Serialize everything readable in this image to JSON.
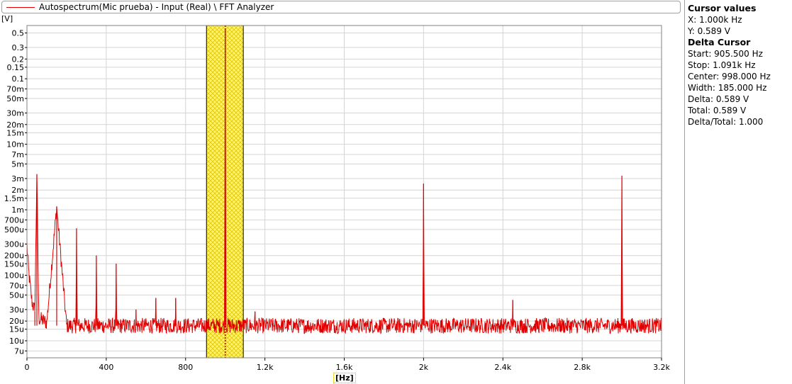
{
  "legend": {
    "label": "Autospectrum(Mic prueba) - Input (Real) \\ FFT Analyzer",
    "color": "#e00000"
  },
  "axes": {
    "y_unit": "[V]",
    "x_unit": "[Hz]"
  },
  "cursor_panel": {
    "cursor_title": "Cursor values",
    "cursor_x": "X: 1.000k Hz",
    "cursor_y": "Y: 0.589 V",
    "delta_title": "Delta Cursor",
    "start": "Start: 905.500 Hz",
    "stop": "Stop: 1.091k Hz",
    "center": "Center: 998.000 Hz",
    "width": "Width: 185.000 Hz",
    "delta": "Delta: 0.589 V",
    "total": "Total: 0.589 V",
    "delta_total": "Delta/Total: 1.000"
  },
  "chart_data": {
    "type": "line",
    "y_scale": "log",
    "xlim": [
      0,
      3200
    ],
    "ylim": [
      5.5e-06,
      0.65
    ],
    "grid": true,
    "x_ticks": [
      {
        "v": 0,
        "label": "0"
      },
      {
        "v": 400,
        "label": "400"
      },
      {
        "v": 800,
        "label": "800"
      },
      {
        "v": 1200,
        "label": "1.2k"
      },
      {
        "v": 1600,
        "label": "1.6k"
      },
      {
        "v": 2000,
        "label": "2k"
      },
      {
        "v": 2400,
        "label": "2.4k"
      },
      {
        "v": 2800,
        "label": "2.8k"
      },
      {
        "v": 3200,
        "label": "3.2k"
      }
    ],
    "y_ticks": [
      {
        "v": 0.5,
        "label": "0.5"
      },
      {
        "v": 0.3,
        "label": "0.3"
      },
      {
        "v": 0.2,
        "label": "0.2"
      },
      {
        "v": 0.15,
        "label": "0.15"
      },
      {
        "v": 0.1,
        "label": "0.1"
      },
      {
        "v": 0.07,
        "label": "70m"
      },
      {
        "v": 0.05,
        "label": "50m"
      },
      {
        "v": 0.03,
        "label": "30m"
      },
      {
        "v": 0.02,
        "label": "20m"
      },
      {
        "v": 0.015,
        "label": "15m"
      },
      {
        "v": 0.01,
        "label": "10m"
      },
      {
        "v": 0.007,
        "label": "7m"
      },
      {
        "v": 0.005,
        "label": "5m"
      },
      {
        "v": 0.003,
        "label": "3m"
      },
      {
        "v": 0.002,
        "label": "2m"
      },
      {
        "v": 0.0015,
        "label": "1.5m"
      },
      {
        "v": 0.001,
        "label": "1m"
      },
      {
        "v": 0.0007,
        "label": "700u"
      },
      {
        "v": 0.0005,
        "label": "500u"
      },
      {
        "v": 0.0003,
        "label": "300u"
      },
      {
        "v": 0.0002,
        "label": "200u"
      },
      {
        "v": 0.00015,
        "label": "150u"
      },
      {
        "v": 0.0001,
        "label": "100u"
      },
      {
        "v": 7e-05,
        "label": "70u"
      },
      {
        "v": 5e-05,
        "label": "50u"
      },
      {
        "v": 3e-05,
        "label": "30u"
      },
      {
        "v": 2e-05,
        "label": "20u"
      },
      {
        "v": 1.5e-05,
        "label": "15u"
      },
      {
        "v": 1e-05,
        "label": "10u"
      },
      {
        "v": 7e-06,
        "label": "7u"
      }
    ],
    "noise_floor": 1.7e-05,
    "series": [
      {
        "points": [
          [
            0,
            0.0003
          ],
          [
            8,
            0.00012
          ],
          [
            16,
            7e-05
          ],
          [
            25,
            4e-05
          ],
          [
            40,
            2.8e-05
          ],
          [
            60,
            2.2e-05
          ],
          [
            100,
            1.9e-05
          ],
          [
            200,
            1.7e-05
          ],
          [
            50,
            0.0035
          ],
          [
            150,
            0.0011
          ],
          [
            250,
            0.00052
          ],
          [
            350,
            0.0002
          ],
          [
            450,
            0.00015
          ],
          [
            550,
            3e-05
          ],
          [
            650,
            4.5e-05
          ],
          [
            750,
            4.5e-05
          ],
          [
            1000,
            0.589
          ],
          [
            1150,
            2.8e-05
          ],
          [
            2000,
            0.0025
          ],
          [
            2450,
            4.2e-05
          ],
          [
            3000,
            0.0033
          ],
          [
            3200,
            1.6e-05
          ]
        ]
      }
    ],
    "delta_cursor": {
      "start": 905.5,
      "stop": 1091,
      "center": 998.0
    },
    "cursor": {
      "x": 1000,
      "y": 0.589
    }
  }
}
